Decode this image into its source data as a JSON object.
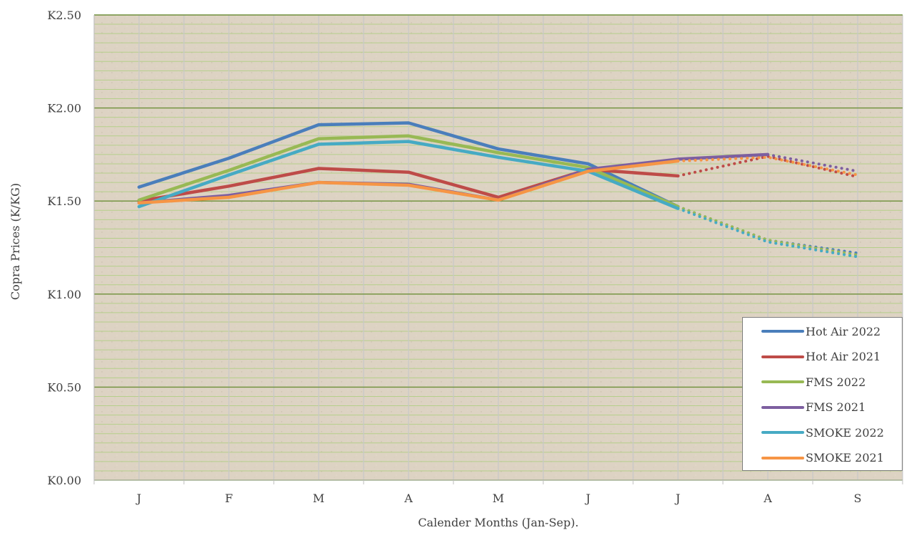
{
  "chart_data": {
    "type": "line",
    "title": "",
    "xlabel": "Calender Months (Jan-Sep).",
    "ylabel": "Copra Prices (K/KG)",
    "categories": [
      "J",
      "F",
      "M",
      "A",
      "M",
      "J",
      "J",
      "A",
      "S"
    ],
    "y_ticks": [
      "K0.00",
      "K0.50",
      "K1.00",
      "K1.50",
      "K2.00",
      "K2.50"
    ],
    "ylim": [
      0,
      2.5
    ],
    "grid": true,
    "legend_position": "bottom-right",
    "series": [
      {
        "name": "Hot Air 2022",
        "color": "#4a7ebb",
        "values": [
          1.575,
          1.73,
          1.91,
          1.92,
          1.78,
          1.7,
          1.47,
          1.29,
          1.22
        ],
        "solid_until_index": 6
      },
      {
        "name": "Hot Air 2021",
        "color": "#be4b48",
        "values": [
          1.5,
          1.58,
          1.675,
          1.655,
          1.52,
          1.67,
          1.635,
          1.74,
          1.63
        ],
        "solid_until_index": 6
      },
      {
        "name": "FMS 2022",
        "color": "#98b954",
        "values": [
          1.505,
          1.665,
          1.835,
          1.85,
          1.76,
          1.68,
          1.47,
          1.29,
          1.21
        ],
        "solid_until_index": 6
      },
      {
        "name": "FMS 2021",
        "color": "#7d5fa0",
        "values": [
          1.49,
          1.53,
          1.6,
          1.59,
          1.505,
          1.67,
          1.725,
          1.75,
          1.66
        ],
        "solid_until_index": 7
      },
      {
        "name": "SMOKE 2022",
        "color": "#46aac4",
        "values": [
          1.47,
          1.64,
          1.805,
          1.82,
          1.735,
          1.66,
          1.46,
          1.28,
          1.2
        ],
        "solid_until_index": 6
      },
      {
        "name": "SMOKE 2021",
        "color": "#f69545",
        "values": [
          1.49,
          1.52,
          1.6,
          1.585,
          1.505,
          1.66,
          1.715,
          1.735,
          1.64
        ],
        "solid_until_index": 6
      }
    ]
  }
}
